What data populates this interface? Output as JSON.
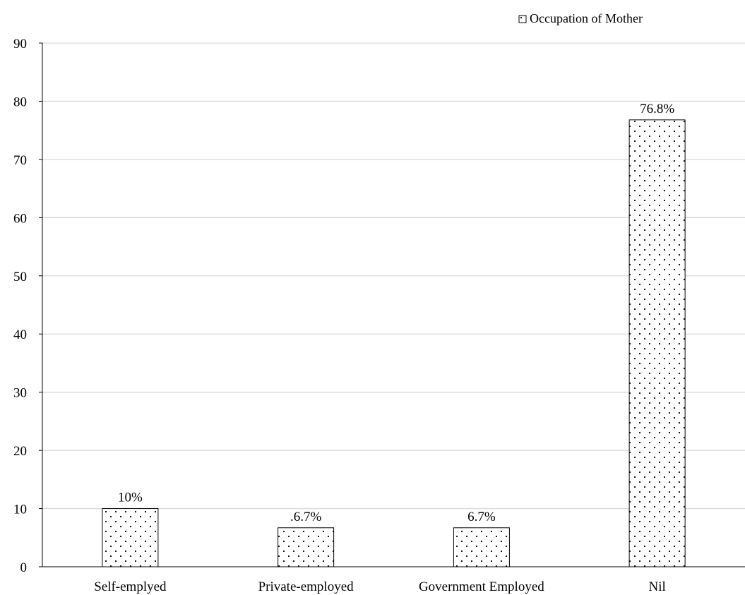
{
  "chart_data": {
    "type": "bar",
    "categories": [
      "Self-emplyed",
      "Private-employed",
      "Government Employed",
      "Nil"
    ],
    "series": [
      {
        "name": "Occupation of Mother",
        "values": [
          10,
          6.7,
          6.7,
          76.8
        ]
      }
    ],
    "data_labels": [
      "10%",
      ".6.7%",
      "6.7%",
      "76.8%"
    ],
    "ylim": [
      0,
      90
    ],
    "yticks": [
      0,
      10,
      20,
      30,
      40,
      50,
      60,
      70,
      80,
      90
    ],
    "grid": true,
    "legend_position": "top-right",
    "bar_fill": "dotted pattern",
    "colors": {
      "bar_stroke": "#000000",
      "dot": "#000000",
      "grid": "#d9d9d9",
      "axis": "#000000"
    }
  }
}
